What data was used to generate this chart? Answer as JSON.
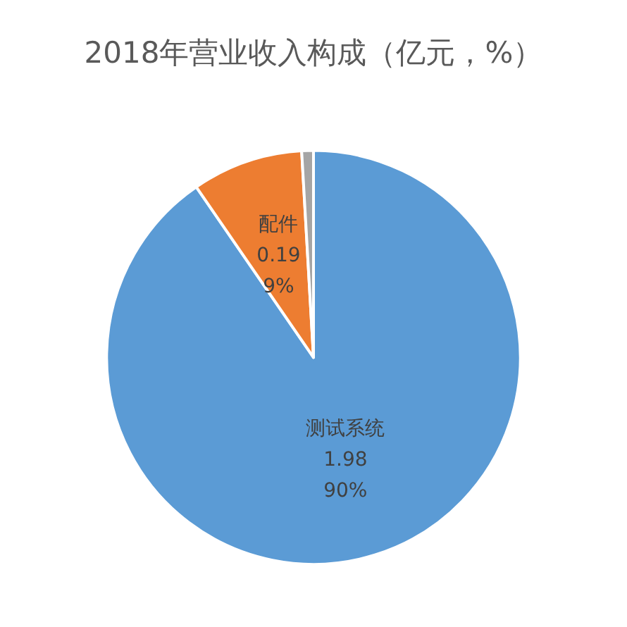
{
  "chart_data": {
    "type": "pie",
    "title": "2018年营业收入构成（亿元，%）",
    "categories": [
      "测试系统",
      "配件",
      null
    ],
    "values": [
      1.98,
      0.19,
      0.02
    ],
    "colors": [
      "#5b9bd5",
      "#ed7d31",
      "#a5a5a5"
    ],
    "value_labels": [
      "1.98\n90%",
      "0.19\n9%",
      null
    ]
  }
}
